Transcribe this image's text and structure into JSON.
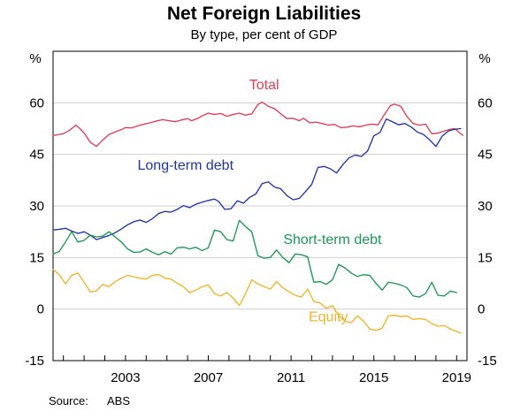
{
  "chart_data": {
    "type": "line",
    "title": "Net Foreign Liabilities",
    "subtitle": "By type, per cent of GDP",
    "left_unit": "%",
    "right_unit": "%",
    "source_label": "Source:",
    "source_value": "ABS",
    "x_ticks": [
      {
        "value": 2003,
        "label": "2003"
      },
      {
        "value": 2007,
        "label": "2007"
      },
      {
        "value": 2011,
        "label": "2011"
      },
      {
        "value": 2015,
        "label": "2015"
      },
      {
        "value": 2019,
        "label": "2019"
      }
    ],
    "y_ticks": [
      {
        "value": 60,
        "label": "60"
      },
      {
        "value": 45,
        "label": "45"
      },
      {
        "value": 30,
        "label": "30"
      },
      {
        "value": 15,
        "label": "15"
      },
      {
        "value": 0,
        "label": "0"
      },
      {
        "value": -15,
        "label": "-15"
      }
    ],
    "xlim": [
      1999.5,
      2019.5
    ],
    "ylim": [
      -15,
      75
    ],
    "grid": true,
    "legend": "inline",
    "series": [
      {
        "name": "Total",
        "color": "#e23b55",
        "label_pos": {
          "x": 2009.7,
          "y": 64
        },
        "points": [
          [
            1999.5,
            50.5
          ],
          [
            1999.8,
            50.8
          ],
          [
            2000.0,
            51.0
          ],
          [
            2000.3,
            52.0
          ],
          [
            2000.6,
            53.5
          ],
          [
            2000.8,
            52.5
          ],
          [
            2001.0,
            51.2
          ],
          [
            2001.3,
            48.5
          ],
          [
            2001.6,
            47.3
          ],
          [
            2001.9,
            49.2
          ],
          [
            2002.2,
            50.8
          ],
          [
            2002.5,
            51.5
          ],
          [
            2002.8,
            52.2
          ],
          [
            2003.0,
            52.8
          ],
          [
            2003.3,
            52.7
          ],
          [
            2003.6,
            53.3
          ],
          [
            2003.9,
            53.8
          ],
          [
            2004.2,
            54.2
          ],
          [
            2004.5,
            54.7
          ],
          [
            2004.8,
            55.1
          ],
          [
            2005.1,
            54.8
          ],
          [
            2005.4,
            54.5
          ],
          [
            2005.7,
            55.0
          ],
          [
            2006.0,
            55.4
          ],
          [
            2006.2,
            54.8
          ],
          [
            2006.5,
            55.5
          ],
          [
            2006.8,
            56.5
          ],
          [
            2007.0,
            57.0
          ],
          [
            2007.3,
            56.6
          ],
          [
            2007.6,
            56.9
          ],
          [
            2007.9,
            56.1
          ],
          [
            2008.2,
            56.6
          ],
          [
            2008.5,
            57.0
          ],
          [
            2008.8,
            56.4
          ],
          [
            2009.1,
            56.8
          ],
          [
            2009.4,
            59.5
          ],
          [
            2009.6,
            60.2
          ],
          [
            2009.9,
            59.0
          ],
          [
            2010.2,
            58.3
          ],
          [
            2010.5,
            56.8
          ],
          [
            2010.8,
            55.4
          ],
          [
            2011.1,
            55.5
          ],
          [
            2011.4,
            54.8
          ],
          [
            2011.6,
            55.5
          ],
          [
            2011.9,
            54.2
          ],
          [
            2012.2,
            54.4
          ],
          [
            2012.5,
            54.0
          ],
          [
            2012.8,
            53.5
          ],
          [
            2013.1,
            53.7
          ],
          [
            2013.4,
            52.8
          ],
          [
            2013.7,
            52.9
          ],
          [
            2014.0,
            53.3
          ],
          [
            2014.3,
            53.0
          ],
          [
            2014.6,
            53.5
          ],
          [
            2014.9,
            53.8
          ],
          [
            2015.2,
            53.6
          ],
          [
            2015.5,
            56.5
          ],
          [
            2015.8,
            59.2
          ],
          [
            2016.0,
            59.6
          ],
          [
            2016.3,
            59.0
          ],
          [
            2016.6,
            56.0
          ],
          [
            2016.9,
            54.0
          ],
          [
            2017.2,
            53.5
          ],
          [
            2017.5,
            53.8
          ],
          [
            2017.8,
            51.0
          ],
          [
            2018.1,
            51.2
          ],
          [
            2018.4,
            51.8
          ],
          [
            2018.7,
            52.3
          ],
          [
            2018.9,
            52.5
          ],
          [
            2019.1,
            51.5
          ],
          [
            2019.3,
            50.5
          ]
        ]
      },
      {
        "name": "Long-term debt",
        "color": "#1f35a6",
        "label_pos": {
          "x": 2005.9,
          "y": 40.5
        },
        "points": [
          [
            1999.5,
            23.0
          ],
          [
            1999.8,
            23.2
          ],
          [
            2000.1,
            23.5
          ],
          [
            2000.4,
            22.7
          ],
          [
            2000.7,
            22.0
          ],
          [
            2001.0,
            22.5
          ],
          [
            2001.3,
            21.5
          ],
          [
            2001.6,
            20.2
          ],
          [
            2001.9,
            20.8
          ],
          [
            2002.2,
            21.4
          ],
          [
            2002.5,
            22.2
          ],
          [
            2002.8,
            23.3
          ],
          [
            2003.1,
            24.5
          ],
          [
            2003.4,
            25.4
          ],
          [
            2003.7,
            25.9
          ],
          [
            2004.0,
            25.2
          ],
          [
            2004.3,
            26.3
          ],
          [
            2004.6,
            27.8
          ],
          [
            2004.9,
            28.4
          ],
          [
            2005.2,
            28.2
          ],
          [
            2005.5,
            29.0
          ],
          [
            2005.8,
            30.1
          ],
          [
            2006.1,
            29.5
          ],
          [
            2006.4,
            30.5
          ],
          [
            2006.7,
            31.1
          ],
          [
            2007.0,
            31.6
          ],
          [
            2007.3,
            32.0
          ],
          [
            2007.5,
            31.3
          ],
          [
            2007.8,
            29.0
          ],
          [
            2008.1,
            29.2
          ],
          [
            2008.4,
            31.5
          ],
          [
            2008.7,
            30.8
          ],
          [
            2009.0,
            32.5
          ],
          [
            2009.3,
            33.5
          ],
          [
            2009.6,
            36.5
          ],
          [
            2009.9,
            37.0
          ],
          [
            2010.2,
            35.5
          ],
          [
            2010.5,
            35.0
          ],
          [
            2010.8,
            33.0
          ],
          [
            2011.1,
            31.8
          ],
          [
            2011.4,
            32.2
          ],
          [
            2011.7,
            34.2
          ],
          [
            2012.0,
            36.3
          ],
          [
            2012.3,
            41.2
          ],
          [
            2012.6,
            41.5
          ],
          [
            2012.9,
            40.8
          ],
          [
            2013.2,
            39.6
          ],
          [
            2013.5,
            42.0
          ],
          [
            2013.8,
            44.0
          ],
          [
            2014.1,
            44.8
          ],
          [
            2014.4,
            44.4
          ],
          [
            2014.7,
            46.0
          ],
          [
            2015.0,
            50.4
          ],
          [
            2015.3,
            51.4
          ],
          [
            2015.6,
            55.3
          ],
          [
            2015.9,
            54.5
          ],
          [
            2016.2,
            53.6
          ],
          [
            2016.5,
            54.0
          ],
          [
            2016.8,
            53.0
          ],
          [
            2017.1,
            51.5
          ],
          [
            2017.4,
            50.8
          ],
          [
            2017.7,
            49.2
          ],
          [
            2018.0,
            47.3
          ],
          [
            2018.3,
            50.3
          ],
          [
            2018.6,
            51.8
          ],
          [
            2018.9,
            52.3
          ],
          [
            2019.2,
            52.5
          ]
        ]
      },
      {
        "name": "Short-term debt",
        "color": "#1a9850",
        "label_pos": {
          "x": 2013.0,
          "y": 19.0
        },
        "points": [
          [
            1999.5,
            16.0
          ],
          [
            1999.8,
            16.8
          ],
          [
            2000.1,
            19.5
          ],
          [
            2000.4,
            22.5
          ],
          [
            2000.7,
            19.5
          ],
          [
            2001.0,
            20.0
          ],
          [
            2001.3,
            21.5
          ],
          [
            2001.6,
            21.0
          ],
          [
            2001.9,
            21.2
          ],
          [
            2002.2,
            22.5
          ],
          [
            2002.5,
            21.0
          ],
          [
            2002.8,
            19.5
          ],
          [
            2003.1,
            17.5
          ],
          [
            2003.4,
            16.5
          ],
          [
            2003.7,
            16.6
          ],
          [
            2004.0,
            17.5
          ],
          [
            2004.3,
            16.5
          ],
          [
            2004.6,
            15.8
          ],
          [
            2004.9,
            16.7
          ],
          [
            2005.2,
            16.0
          ],
          [
            2005.5,
            17.8
          ],
          [
            2005.8,
            18.0
          ],
          [
            2006.1,
            17.5
          ],
          [
            2006.4,
            18.0
          ],
          [
            2006.7,
            17.0
          ],
          [
            2007.0,
            17.8
          ],
          [
            2007.3,
            23.0
          ],
          [
            2007.6,
            22.5
          ],
          [
            2007.9,
            20.2
          ],
          [
            2008.2,
            19.8
          ],
          [
            2008.5,
            25.8
          ],
          [
            2008.8,
            24.0
          ],
          [
            2009.1,
            22.5
          ],
          [
            2009.4,
            15.5
          ],
          [
            2009.7,
            14.8
          ],
          [
            2010.0,
            15.0
          ],
          [
            2010.3,
            17.2
          ],
          [
            2010.6,
            15.0
          ],
          [
            2010.9,
            13.5
          ],
          [
            2011.2,
            16.0
          ],
          [
            2011.5,
            15.8
          ],
          [
            2011.8,
            15.2
          ],
          [
            2012.1,
            7.8
          ],
          [
            2012.4,
            8.0
          ],
          [
            2012.7,
            7.2
          ],
          [
            2013.0,
            8.5
          ],
          [
            2013.3,
            13.0
          ],
          [
            2013.6,
            12.0
          ],
          [
            2013.9,
            10.5
          ],
          [
            2014.2,
            9.5
          ],
          [
            2014.5,
            10.0
          ],
          [
            2014.8,
            9.8
          ],
          [
            2015.1,
            7.5
          ],
          [
            2015.4,
            5.5
          ],
          [
            2015.7,
            7.8
          ],
          [
            2016.0,
            7.5
          ],
          [
            2016.3,
            7.0
          ],
          [
            2016.6,
            6.2
          ],
          [
            2016.9,
            3.8
          ],
          [
            2017.2,
            3.5
          ],
          [
            2017.5,
            4.5
          ],
          [
            2017.8,
            7.8
          ],
          [
            2018.1,
            4.0
          ],
          [
            2018.4,
            3.8
          ],
          [
            2018.7,
            5.2
          ],
          [
            2019.0,
            4.8
          ]
        ]
      },
      {
        "name": "Equity",
        "color": "#f0b429",
        "label_pos": {
          "x": 2012.8,
          "y": -3.5
        },
        "points": [
          [
            1999.5,
            11.5
          ],
          [
            1999.8,
            10.0
          ],
          [
            2000.1,
            7.3
          ],
          [
            2000.4,
            9.8
          ],
          [
            2000.7,
            10.5
          ],
          [
            2001.0,
            7.8
          ],
          [
            2001.3,
            5.0
          ],
          [
            2001.6,
            5.3
          ],
          [
            2001.9,
            7.2
          ],
          [
            2002.2,
            6.5
          ],
          [
            2002.5,
            8.0
          ],
          [
            2002.8,
            9.0
          ],
          [
            2003.1,
            9.8
          ],
          [
            2003.4,
            9.4
          ],
          [
            2003.7,
            9.0
          ],
          [
            2004.0,
            8.7
          ],
          [
            2004.3,
            9.8
          ],
          [
            2004.6,
            10.1
          ],
          [
            2004.9,
            9.0
          ],
          [
            2005.2,
            8.7
          ],
          [
            2005.5,
            7.5
          ],
          [
            2005.8,
            6.5
          ],
          [
            2006.1,
            4.8
          ],
          [
            2006.4,
            5.5
          ],
          [
            2006.7,
            6.5
          ],
          [
            2007.0,
            7.0
          ],
          [
            2007.3,
            4.5
          ],
          [
            2007.6,
            3.8
          ],
          [
            2007.9,
            4.8
          ],
          [
            2008.2,
            3.2
          ],
          [
            2008.5,
            1.0
          ],
          [
            2008.8,
            4.5
          ],
          [
            2009.1,
            8.5
          ],
          [
            2009.4,
            7.3
          ],
          [
            2009.7,
            6.5
          ],
          [
            2010.0,
            5.8
          ],
          [
            2010.3,
            8.0
          ],
          [
            2010.6,
            6.2
          ],
          [
            2010.9,
            5.0
          ],
          [
            2011.2,
            4.0
          ],
          [
            2011.5,
            3.5
          ],
          [
            2011.8,
            5.8
          ],
          [
            2012.1,
            2.2
          ],
          [
            2012.4,
            1.8
          ],
          [
            2012.7,
            0.2
          ],
          [
            2013.0,
            1.0
          ],
          [
            2013.3,
            -2.0
          ],
          [
            2013.6,
            -3.5
          ],
          [
            2013.9,
            -4.0
          ],
          [
            2014.2,
            -2.0
          ],
          [
            2014.5,
            -3.5
          ],
          [
            2014.8,
            -5.8
          ],
          [
            2015.1,
            -6.2
          ],
          [
            2015.4,
            -5.6
          ],
          [
            2015.7,
            -2.0
          ],
          [
            2016.0,
            -1.8
          ],
          [
            2016.3,
            -2.2
          ],
          [
            2016.6,
            -2.0
          ],
          [
            2016.9,
            -3.0
          ],
          [
            2017.2,
            -2.8
          ],
          [
            2017.5,
            -3.0
          ],
          [
            2017.8,
            -4.2
          ],
          [
            2018.1,
            -5.0
          ],
          [
            2018.4,
            -4.8
          ],
          [
            2018.7,
            -5.8
          ],
          [
            2019.0,
            -6.5
          ],
          [
            2019.2,
            -7.0
          ]
        ]
      }
    ]
  }
}
